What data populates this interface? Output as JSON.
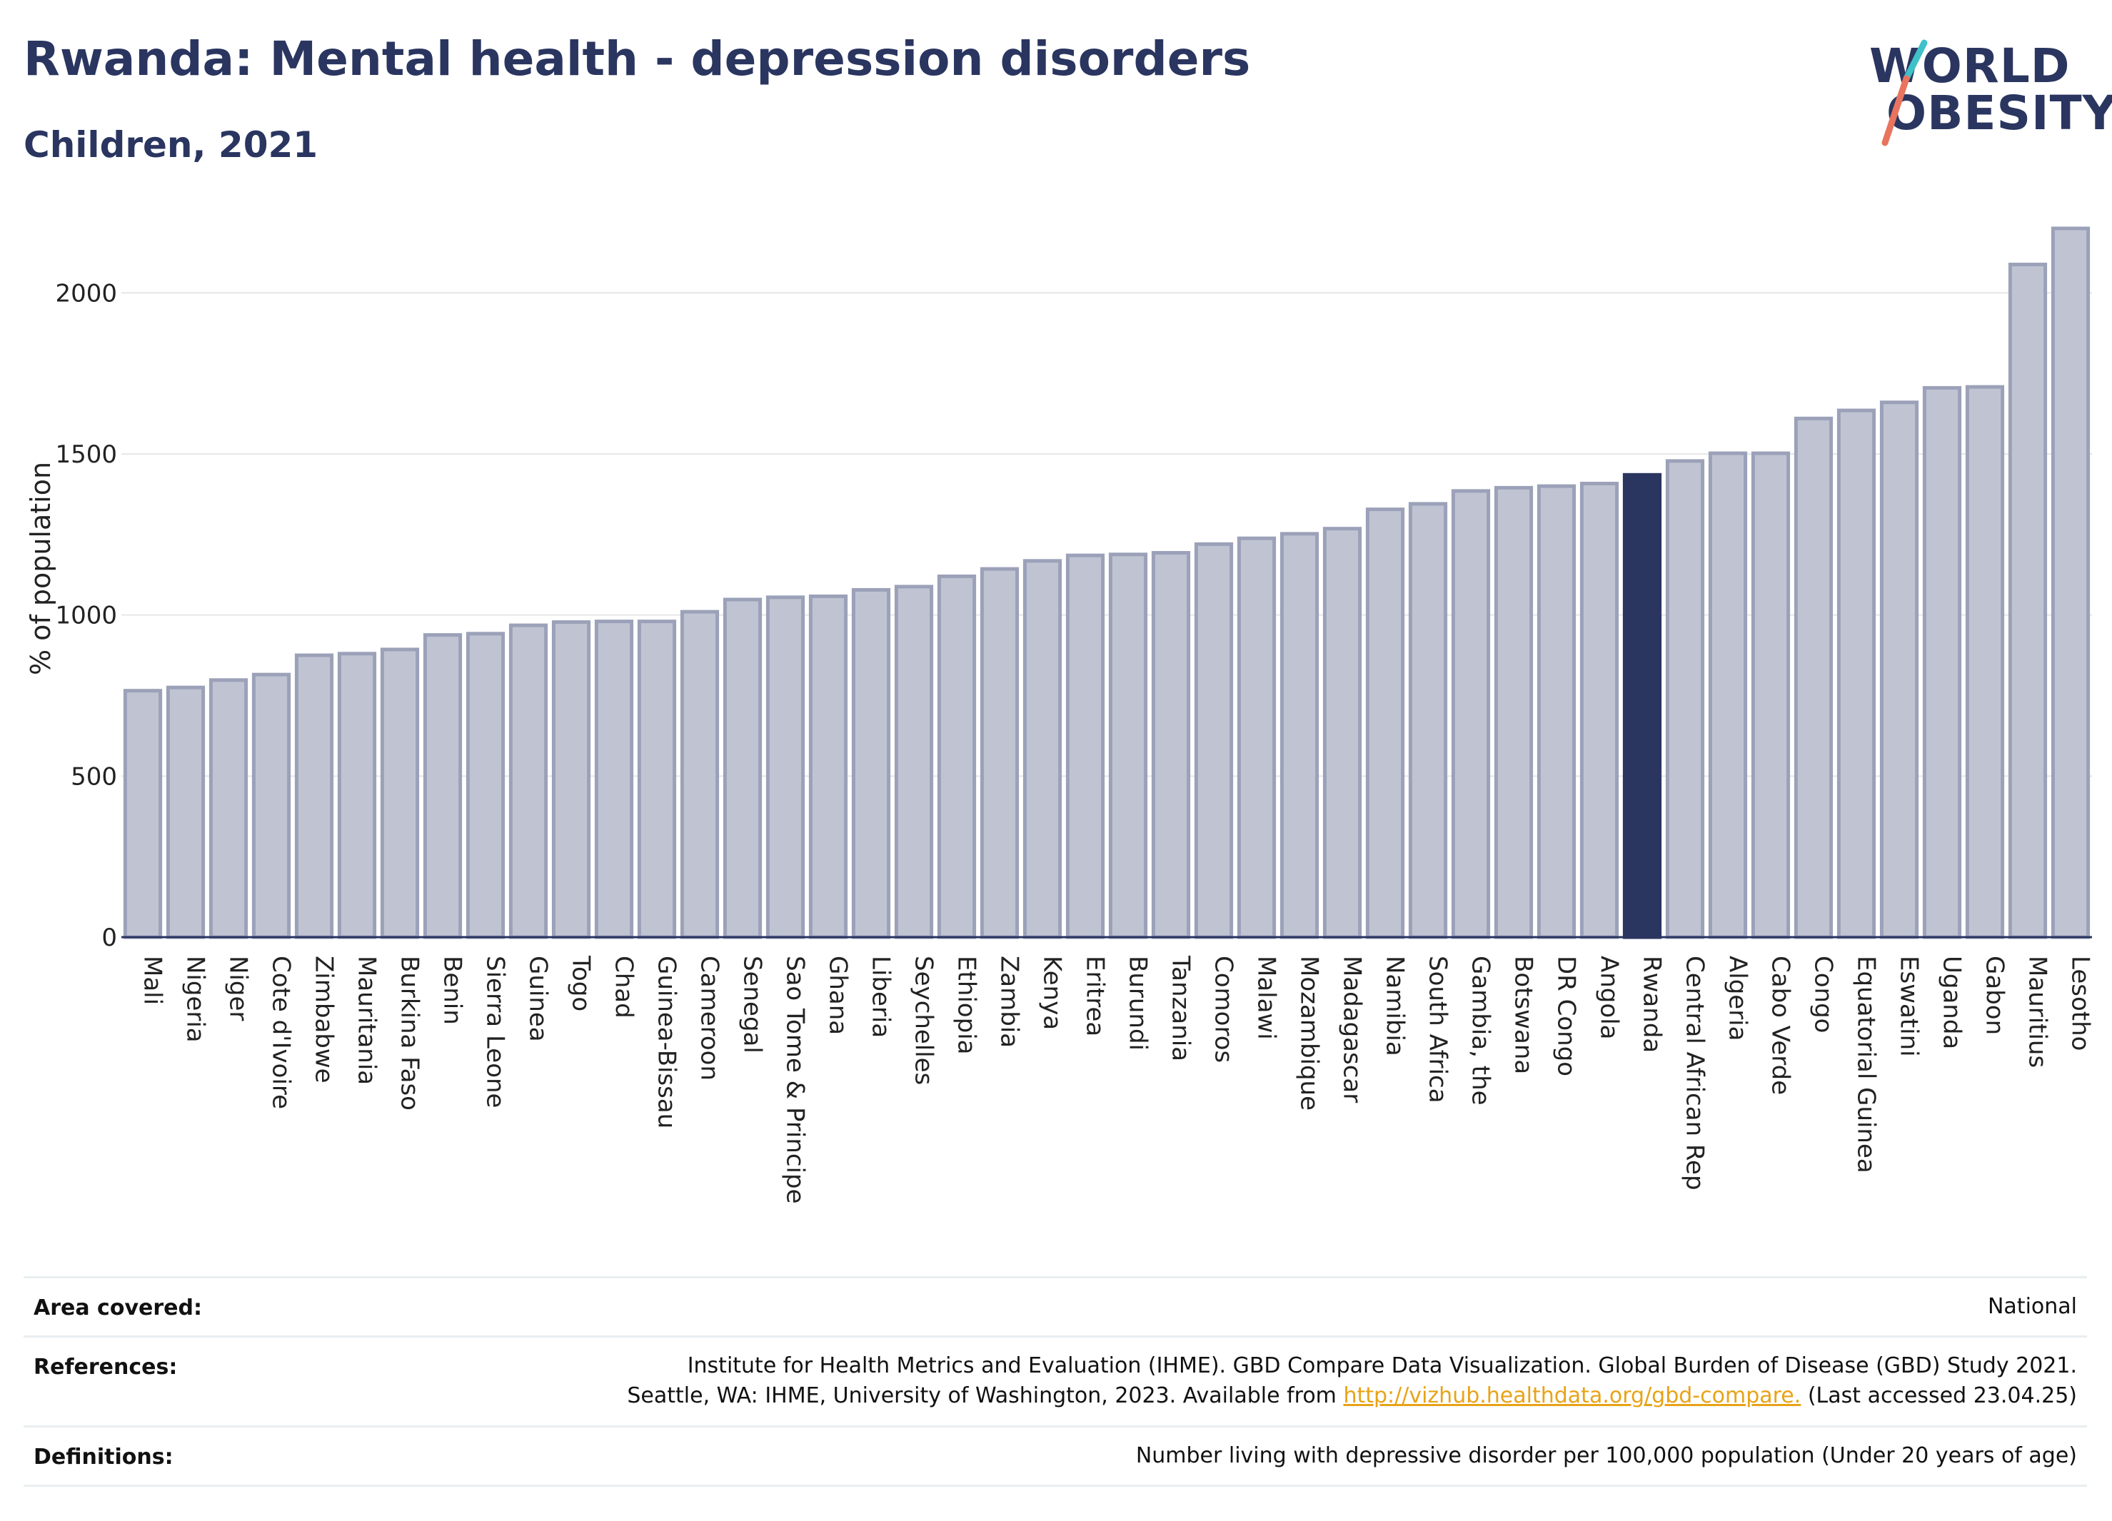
{
  "header": {
    "title": "Rwanda: Mental health - depression disorders",
    "subtitle": "Children, 2021"
  },
  "logo": {
    "line1": "WORLD",
    "line2": "OBESITY",
    "colors": {
      "navy": "#2a3560",
      "teal": "#3fc1c9",
      "coral": "#e8745f"
    }
  },
  "colors": {
    "bar": "#c0c4d2",
    "bar_edge": "#9ba1b8",
    "highlight": "#2a3560",
    "grid": "#e6e6e6",
    "axis": "#2a3560"
  },
  "chart_data": {
    "type": "bar",
    "ylabel": "% of population",
    "ylim": [
      0,
      2200
    ],
    "yticks": [
      0,
      500,
      1000,
      1500,
      2000
    ],
    "highlight": "Rwanda",
    "categories": [
      "Mali",
      "Nigeria",
      "Niger",
      "Cote d'Ivoire",
      "Zimbabwe",
      "Mauritania",
      "Burkina Faso",
      "Benin",
      "Sierra Leone",
      "Guinea",
      "Togo",
      "Chad",
      "Guinea-Bissau",
      "Cameroon",
      "Senegal",
      "Sao Tome & Principe",
      "Ghana",
      "Liberia",
      "Seychelles",
      "Ethiopia",
      "Zambia",
      "Kenya",
      "Eritrea",
      "Burundi",
      "Tanzania",
      "Comoros",
      "Malawi",
      "Mozambique",
      "Madagascar",
      "Namibia",
      "South Africa",
      "Gambia, the",
      "Botswana",
      "DR Congo",
      "Angola",
      "Rwanda",
      "Central African Rep",
      "Algeria",
      "Cabo Verde",
      "Congo",
      "Equatorial Guinea",
      "Eswatini",
      "Uganda",
      "Gabon",
      "Mauritius",
      "Lesotho"
    ],
    "values": [
      765,
      775,
      798,
      815,
      875,
      880,
      893,
      938,
      942,
      968,
      978,
      980,
      980,
      1010,
      1048,
      1055,
      1058,
      1078,
      1088,
      1120,
      1143,
      1168,
      1185,
      1188,
      1193,
      1220,
      1238,
      1252,
      1268,
      1328,
      1345,
      1385,
      1395,
      1400,
      1408,
      1435,
      1478,
      1502,
      1502,
      1610,
      1635,
      1660,
      1705,
      1708,
      2088,
      2200
    ],
    "grid": true,
    "legend": "none"
  },
  "footer": {
    "area_label": "Area covered:",
    "area_value": "National",
    "references_label": "References:",
    "references_line1": "Institute for Health Metrics and Evaluation (IHME). GBD Compare Data Visualization. Global Burden of Disease (GBD) Study 2021.",
    "references_line2_pre": "Seattle, WA: IHME, University of Washington, 2023. Available from ",
    "references_link": "http://vizhub.healthdata.org/gbd-compare.",
    "references_line2_post": " (Last accessed 23.04.25)",
    "definitions_label": "Definitions:",
    "definitions_value": "Number living with depressive disorder per 100,000 population (Under 20 years of age)"
  }
}
